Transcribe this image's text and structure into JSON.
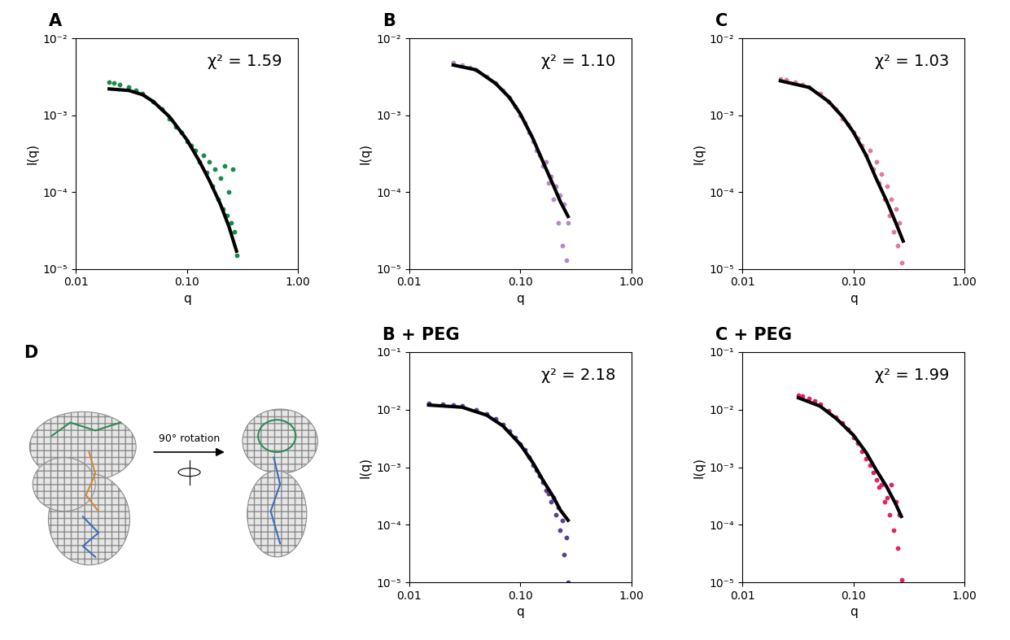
{
  "chart_data": [
    {
      "type": "scatter",
      "title": "A",
      "xlabel": "q",
      "ylabel": "I(q)",
      "annotation": "χ² = 1.59",
      "log": true,
      "xlim": [
        0.01,
        1
      ],
      "ylim": [
        1e-05,
        0.01
      ],
      "xticks": [
        {
          "value": 0.01,
          "label": "0.01"
        },
        {
          "value": 0.1,
          "label": "0.10"
        },
        {
          "value": 1,
          "label": "1.00"
        }
      ],
      "yticks": [
        {
          "value": 1e-05,
          "label": "10⁻⁵"
        },
        {
          "value": 0.0001,
          "label": "10⁻⁴"
        },
        {
          "value": 0.001,
          "label": "10⁻³"
        },
        {
          "value": 0.01,
          "label": "10⁻²"
        }
      ],
      "series": [
        {
          "type": "scatter",
          "color": "#1a8a4a",
          "marker": "o",
          "x": [
            0.02,
            0.022,
            0.025,
            0.03,
            0.035,
            0.04,
            0.05,
            0.06,
            0.07,
            0.08,
            0.09,
            0.1,
            0.11,
            0.12,
            0.13,
            0.14,
            0.15,
            0.16,
            0.17,
            0.18,
            0.19,
            0.2,
            0.21,
            0.22,
            0.23,
            0.24,
            0.25,
            0.26,
            0.27,
            0.28
          ],
          "values": [
            0.0027,
            0.0026,
            0.0025,
            0.0023,
            0.0021,
            0.0019,
            0.0015,
            0.0012,
            0.0009,
            0.0007,
            0.0006,
            0.00045,
            0.0004,
            0.00035,
            0.00025,
            0.0003,
            0.00018,
            0.00025,
            0.00012,
            0.0002,
            8e-05,
            0.00015,
            6e-05,
            0.00022,
            5e-05,
            0.0001,
            4e-05,
            0.0002,
            3e-05,
            1.5e-05
          ]
        },
        {
          "type": "line",
          "color": "#000000",
          "line_style": "solid",
          "x": [
            0.02,
            0.03,
            0.04,
            0.05,
            0.07,
            0.1,
            0.13,
            0.16,
            0.2,
            0.24,
            0.28
          ],
          "values": [
            0.0022,
            0.0021,
            0.00185,
            0.0015,
            0.00095,
            0.00048,
            0.00025,
            0.00014,
            7e-05,
            3.5e-05,
            1.7e-05
          ]
        }
      ]
    },
    {
      "type": "scatter",
      "title": "B",
      "xlabel": "q",
      "ylabel": "I(q)",
      "annotation": "χ² = 1.10",
      "log": true,
      "xlim": [
        0.01,
        1
      ],
      "ylim": [
        1e-05,
        0.01
      ],
      "xticks": [
        {
          "value": 0.01,
          "label": "0.01"
        },
        {
          "value": 0.1,
          "label": "0.10"
        },
        {
          "value": 1,
          "label": "1.00"
        }
      ],
      "yticks": [
        {
          "value": 1e-05,
          "label": "10⁻⁵"
        },
        {
          "value": 0.0001,
          "label": "10⁻⁴"
        },
        {
          "value": 0.001,
          "label": "10⁻³"
        },
        {
          "value": 0.01,
          "label": "10⁻²"
        }
      ],
      "series": [
        {
          "type": "scatter",
          "color": "#b48cc8",
          "marker": "o",
          "x": [
            0.025,
            0.03,
            0.035,
            0.04,
            0.05,
            0.06,
            0.07,
            0.08,
            0.09,
            0.1,
            0.11,
            0.12,
            0.13,
            0.14,
            0.15,
            0.16,
            0.17,
            0.18,
            0.19,
            0.2,
            0.21,
            0.22,
            0.23,
            0.24,
            0.25,
            0.26,
            0.27
          ],
          "values": [
            0.0048,
            0.0045,
            0.0042,
            0.0039,
            0.0032,
            0.0026,
            0.0021,
            0.0017,
            0.0013,
            0.001,
            0.0008,
            0.0006,
            0.00045,
            0.00035,
            0.0003,
            0.00022,
            0.00025,
            0.00013,
            0.00016,
            8e-05,
            0.00012,
            4e-05,
            9e-05,
            2e-05,
            7e-05,
            1.3e-05,
            4e-05
          ]
        },
        {
          "type": "line",
          "color": "#000000",
          "line_style": "solid",
          "x": [
            0.025,
            0.04,
            0.06,
            0.08,
            0.1,
            0.13,
            0.16,
            0.2,
            0.23,
            0.27
          ],
          "values": [
            0.0045,
            0.0039,
            0.0026,
            0.0017,
            0.00105,
            0.0005,
            0.00025,
            0.00012,
            7.5e-05,
            4.8e-05
          ]
        }
      ]
    },
    {
      "type": "scatter",
      "title": "C",
      "xlabel": "q",
      "ylabel": "I(q)",
      "annotation": "χ² = 1.03",
      "log": true,
      "xlim": [
        0.01,
        1
      ],
      "ylim": [
        1e-05,
        0.01
      ],
      "xticks": [
        {
          "value": 0.01,
          "label": "0.01"
        },
        {
          "value": 0.1,
          "label": "0.10"
        },
        {
          "value": 1,
          "label": "1.00"
        }
      ],
      "yticks": [
        {
          "value": 1e-05,
          "label": "10⁻⁵"
        },
        {
          "value": 0.0001,
          "label": "10⁻⁴"
        },
        {
          "value": 0.001,
          "label": "10⁻³"
        },
        {
          "value": 0.01,
          "label": "10⁻²"
        }
      ],
      "series": [
        {
          "type": "scatter",
          "color": "#e07a9a",
          "marker": "o",
          "x": [
            0.022,
            0.025,
            0.03,
            0.035,
            0.04,
            0.05,
            0.06,
            0.07,
            0.08,
            0.09,
            0.1,
            0.11,
            0.12,
            0.13,
            0.14,
            0.15,
            0.16,
            0.17,
            0.18,
            0.19,
            0.2,
            0.21,
            0.22,
            0.23,
            0.24,
            0.25,
            0.26,
            0.27
          ],
          "values": [
            0.003,
            0.0029,
            0.0027,
            0.0025,
            0.0023,
            0.0019,
            0.0015,
            0.0012,
            0.0009,
            0.00075,
            0.0006,
            0.0005,
            0.0004,
            0.0003,
            0.00035,
            0.0002,
            0.00025,
            0.00013,
            0.00017,
            8e-05,
            0.00012,
            5e-05,
            8e-05,
            3e-05,
            6e-05,
            2e-05,
            4e-05,
            1.2e-05
          ]
        },
        {
          "type": "line",
          "color": "#000000",
          "line_style": "solid",
          "x": [
            0.022,
            0.04,
            0.06,
            0.08,
            0.1,
            0.13,
            0.16,
            0.2,
            0.24,
            0.28
          ],
          "values": [
            0.0028,
            0.0023,
            0.0015,
            0.00095,
            0.0006,
            0.0003,
            0.00015,
            7.5e-05,
            4e-05,
            2.3e-05
          ]
        }
      ]
    },
    {
      "type": "scatter",
      "title": "B + PEG",
      "xlabel": "q",
      "ylabel": "I(q)",
      "annotation": "χ² = 2.18",
      "log": true,
      "xlim": [
        0.01,
        1
      ],
      "ylim": [
        1e-05,
        0.1
      ],
      "xticks": [
        {
          "value": 0.01,
          "label": "0.01"
        },
        {
          "value": 0.1,
          "label": "0.10"
        },
        {
          "value": 1,
          "label": "1.00"
        }
      ],
      "yticks": [
        {
          "value": 1e-05,
          "label": "10⁻⁵"
        },
        {
          "value": 0.0001,
          "label": "10⁻⁴"
        },
        {
          "value": 0.001,
          "label": "10⁻³"
        },
        {
          "value": 0.01,
          "label": "10⁻²"
        },
        {
          "value": 0.1,
          "label": "10⁻¹"
        }
      ],
      "series": [
        {
          "type": "scatter",
          "color": "#5b3f99",
          "marker": "o",
          "x": [
            0.015,
            0.02,
            0.025,
            0.03,
            0.04,
            0.05,
            0.06,
            0.07,
            0.08,
            0.09,
            0.1,
            0.11,
            0.12,
            0.13,
            0.14,
            0.15,
            0.16,
            0.17,
            0.18,
            0.19,
            0.2,
            0.21,
            0.22,
            0.23,
            0.24,
            0.25,
            0.26,
            0.27
          ],
          "values": [
            0.013,
            0.0125,
            0.012,
            0.0115,
            0.01,
            0.0085,
            0.007,
            0.0055,
            0.0042,
            0.0033,
            0.0025,
            0.002,
            0.0015,
            0.0011,
            0.0009,
            0.0007,
            0.00055,
            0.0004,
            0.00035,
            0.00025,
            0.0003,
            0.00015,
            0.0002,
            8e-05,
            0.00012,
            3e-05,
            6e-05,
            1e-05
          ]
        },
        {
          "type": "line",
          "color": "#000000",
          "line_style": "solid",
          "x": [
            0.015,
            0.03,
            0.05,
            0.07,
            0.1,
            0.13,
            0.16,
            0.2,
            0.23,
            0.27
          ],
          "values": [
            0.012,
            0.011,
            0.008,
            0.0052,
            0.0025,
            0.0012,
            0.0006,
            0.0003,
            0.00018,
            0.00012
          ]
        }
      ]
    },
    {
      "type": "scatter",
      "title": "C + PEG",
      "xlabel": "q",
      "ylabel": "I(q)",
      "annotation": "χ² = 1.99",
      "log": true,
      "xlim": [
        0.01,
        1
      ],
      "ylim": [
        1e-05,
        0.1
      ],
      "xticks": [
        {
          "value": 0.01,
          "label": "0.01"
        },
        {
          "value": 0.1,
          "label": "0.10"
        },
        {
          "value": 1,
          "label": "1.00"
        }
      ],
      "yticks": [
        {
          "value": 1e-05,
          "label": "10⁻⁵"
        },
        {
          "value": 0.0001,
          "label": "10⁻⁴"
        },
        {
          "value": 0.001,
          "label": "10⁻³"
        },
        {
          "value": 0.01,
          "label": "10⁻²"
        },
        {
          "value": 0.1,
          "label": "10⁻¹"
        }
      ],
      "series": [
        {
          "type": "scatter",
          "color": "#e0226a",
          "marker": "o",
          "x": [
            0.032,
            0.035,
            0.04,
            0.045,
            0.05,
            0.06,
            0.07,
            0.08,
            0.09,
            0.1,
            0.11,
            0.12,
            0.13,
            0.14,
            0.15,
            0.16,
            0.17,
            0.18,
            0.19,
            0.2,
            0.21,
            0.22,
            0.23,
            0.24,
            0.25,
            0.26,
            0.27
          ],
          "values": [
            0.0175,
            0.017,
            0.0155,
            0.014,
            0.0125,
            0.0095,
            0.0075,
            0.0058,
            0.0045,
            0.0033,
            0.0026,
            0.0019,
            0.0014,
            0.0011,
            0.0008,
            0.0006,
            0.00045,
            0.0005,
            0.00025,
            0.0003,
            0.00015,
            0.0005,
            8e-05,
            0.00025,
            4e-05,
            0.00015,
            1.1e-05
          ]
        },
        {
          "type": "line",
          "color": "#000000",
          "line_style": "solid",
          "x": [
            0.032,
            0.05,
            0.07,
            0.1,
            0.13,
            0.16,
            0.2,
            0.24,
            0.27
          ],
          "values": [
            0.016,
            0.0115,
            0.007,
            0.0036,
            0.0018,
            0.0009,
            0.00045,
            0.00023,
            0.00014
          ]
        }
      ]
    }
  ],
  "panel_d": {
    "title": "D",
    "annotation": "90° rotation"
  }
}
